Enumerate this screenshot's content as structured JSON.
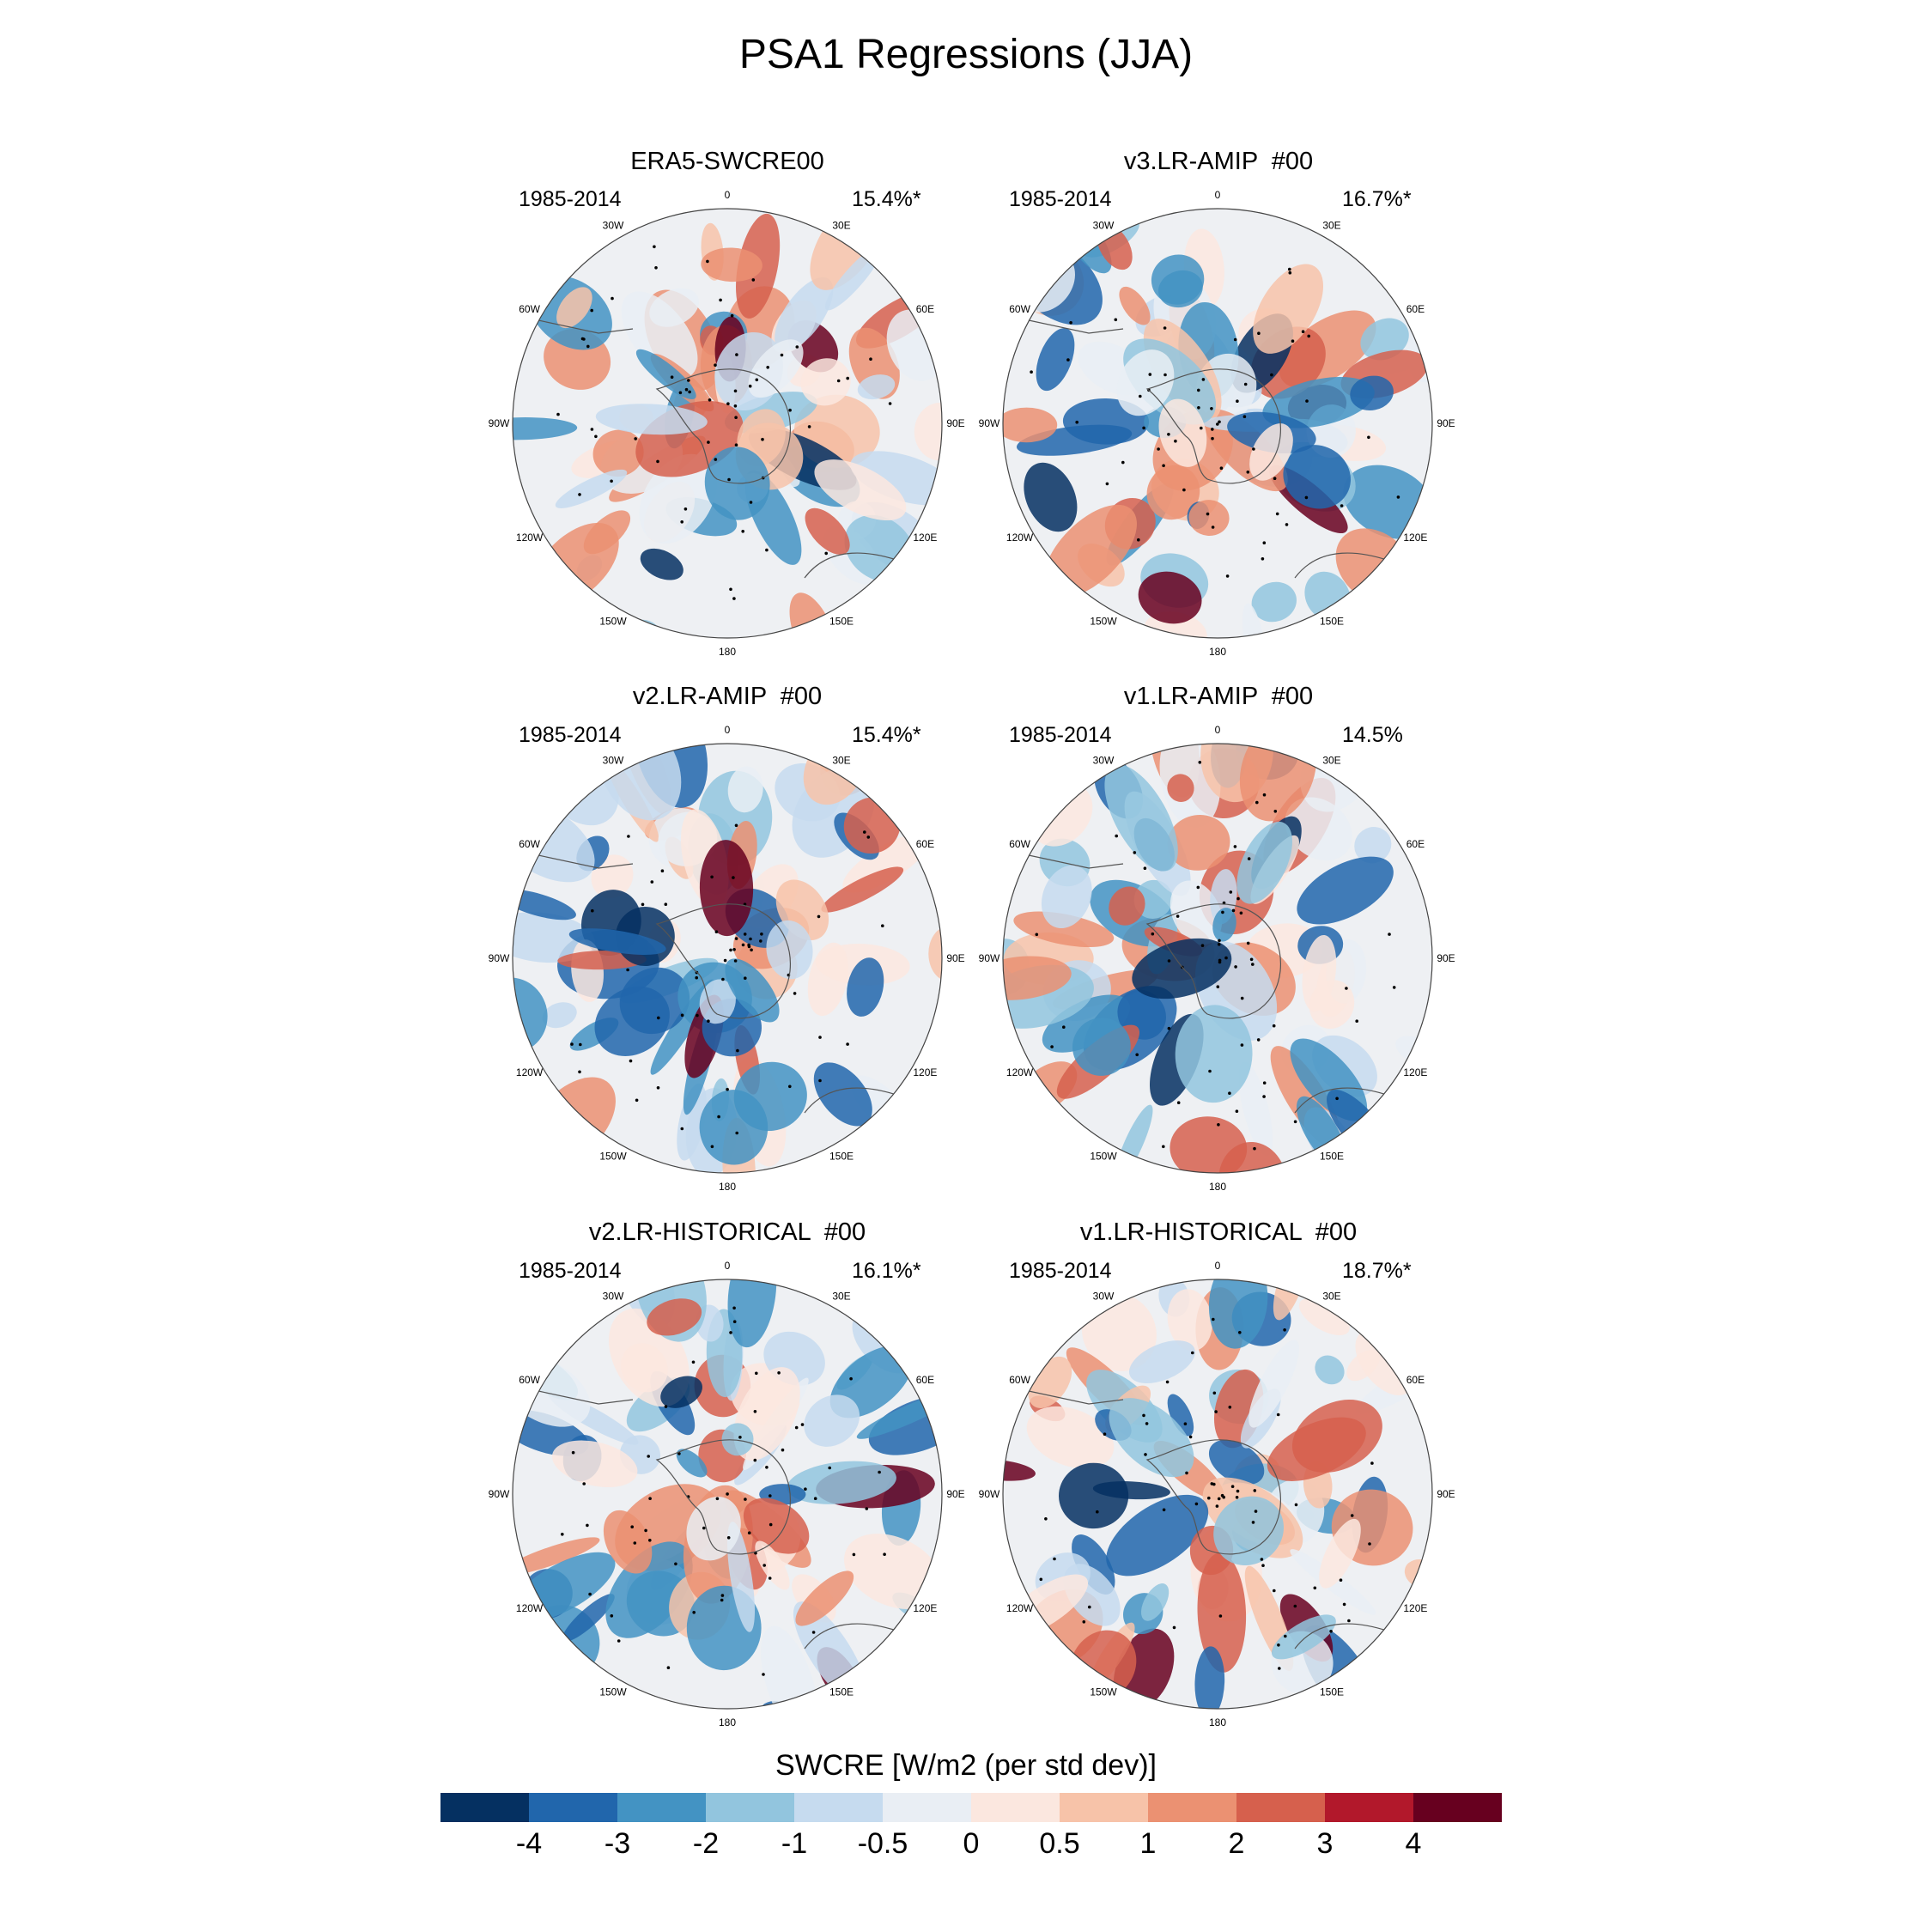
{
  "title": "PSA1 Regressions (JJA)",
  "panels": [
    {
      "title": "ERA5-SWCRE00",
      "years": "1985-2014",
      "pct": "15.4%*",
      "pattern_seed": 11
    },
    {
      "title": "v3.LR-AMIP  #00",
      "years": "1985-2014",
      "pct": "16.7%*",
      "pattern_seed": 23
    },
    {
      "title": "v2.LR-AMIP  #00",
      "years": "1985-2014",
      "pct": "15.4%*",
      "pattern_seed": 37
    },
    {
      "title": "v1.LR-AMIP  #00",
      "years": "1985-2014",
      "pct": "14.5%",
      "pattern_seed": 41
    },
    {
      "title": "v2.LR-HISTORICAL  #00",
      "years": "1985-2014",
      "pct": "16.1%*",
      "pattern_seed": 53
    },
    {
      "title": "v1.LR-HISTORICAL  #00",
      "years": "1985-2014",
      "pct": "18.7%*",
      "pattern_seed": 67
    }
  ],
  "longitude_labels": [
    "0",
    "30E",
    "60E",
    "90E",
    "120E",
    "150E",
    "180",
    "150W",
    "120W",
    "90W",
    "60W",
    "30W"
  ],
  "colorbar": {
    "title": "SWCRE [W/m2 (per std dev)]",
    "levels": [
      "-4",
      "-3",
      "-2",
      "-1",
      "-0.5",
      "0",
      "0.5",
      "1",
      "2",
      "3",
      "4"
    ],
    "colors": [
      "#053061",
      "#2166ac",
      "#4393c3",
      "#92c5de",
      "#c6dbef",
      "#e9eef4",
      "#fbe7df",
      "#f7c3a9",
      "#eb9172",
      "#d6604d",
      "#b2182b",
      "#67001f"
    ]
  }
}
